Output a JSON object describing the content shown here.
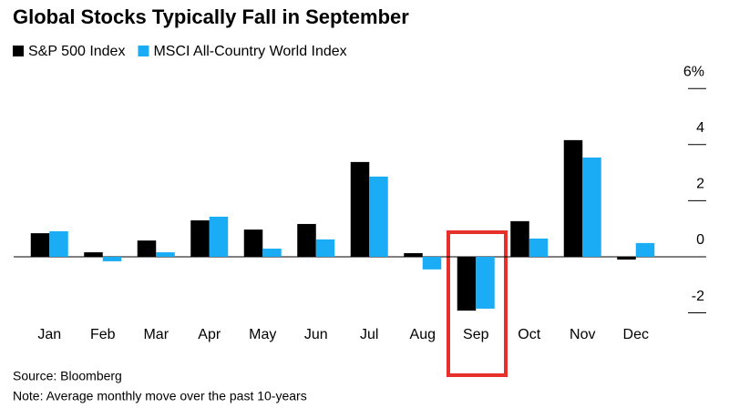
{
  "chart_data": {
    "type": "bar",
    "title": "Global Stocks Typically Fall in September",
    "categories": [
      "Jan",
      "Feb",
      "Mar",
      "Apr",
      "May",
      "Jun",
      "Jul",
      "Aug",
      "Sep",
      "Oct",
      "Nov",
      "Dec"
    ],
    "series": [
      {
        "name": "S&P 500 Index",
        "color": "#000000",
        "values": [
          0.84,
          0.16,
          0.58,
          1.3,
          0.97,
          1.17,
          3.38,
          0.13,
          -1.92,
          1.27,
          4.16,
          -0.1
        ]
      },
      {
        "name": "MSCI All-Country World Index",
        "color": "#1aacf4",
        "values": [
          0.91,
          -0.16,
          0.16,
          1.43,
          0.29,
          0.62,
          2.86,
          -0.45,
          -1.85,
          0.65,
          3.54,
          0.49
        ]
      }
    ],
    "ylim": [
      -2.3,
      6
    ],
    "yticks": [
      {
        "value": 6,
        "label": "6%"
      },
      4,
      2,
      0,
      -2
    ],
    "source": "Source: Bloomberg",
    "note": "Note: Average monthly move over the past 10-years"
  }
}
